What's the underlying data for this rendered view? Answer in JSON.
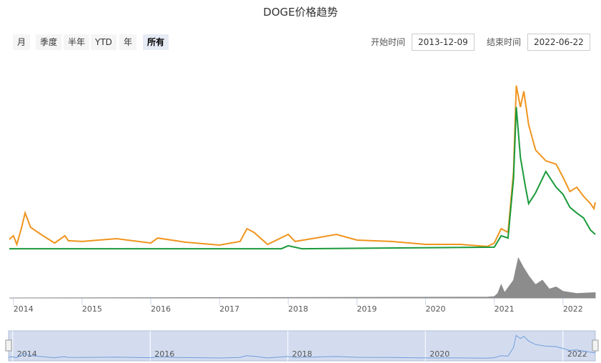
{
  "chart_data": {
    "type": "line",
    "title": "DOGE价格趋势",
    "range_buttons": [
      "月",
      "季度",
      "半年",
      "YTD",
      "年",
      "所有"
    ],
    "selected_button": 5,
    "start_label": "开始时间",
    "start_date": "2013-12-09",
    "end_label": "结束时间",
    "end_date": "2022-06-22",
    "xlim": [
      2013.94,
      2022.47
    ],
    "xticks": [
      2014,
      2015,
      2016,
      2017,
      2018,
      2019,
      2020,
      2021,
      2022
    ],
    "ylim": [
      0,
      0.8
    ],
    "y2lim": [
      0,
      1
    ],
    "navigator_xticks": [
      2014,
      2016,
      2018,
      2020,
      2022
    ],
    "series": [
      {
        "color": "#f0941e",
        "x": [
          2013.94,
          2014.0,
          2014.05,
          2014.12,
          2014.17,
          2014.25,
          2014.4,
          2014.6,
          2014.75,
          2014.8,
          2015.0,
          2015.5,
          2016.0,
          2016.1,
          2016.5,
          2017.0,
          2017.3,
          2017.4,
          2017.5,
          2017.7,
          2018.0,
          2018.1,
          2018.4,
          2018.7,
          2019.0,
          2019.5,
          2020.0,
          2020.5,
          2020.9,
          2021.0,
          2021.1,
          2021.2,
          2021.28,
          2021.32,
          2021.38,
          2021.43,
          2021.5,
          2021.6,
          2021.75,
          2021.9,
          2022.0,
          2022.1,
          2022.2,
          2022.3,
          2022.4,
          2022.45,
          2022.47
        ],
        "values": [
          0.047,
          0.063,
          0.025,
          0.1,
          0.163,
          0.1,
          0.069,
          0.031,
          0.063,
          0.041,
          0.038,
          0.05,
          0.031,
          0.053,
          0.035,
          0.022,
          0.038,
          0.094,
          0.078,
          0.025,
          0.069,
          0.038,
          0.053,
          0.069,
          0.044,
          0.038,
          0.025,
          0.025,
          0.016,
          0.031,
          0.094,
          0.078,
          0.345,
          0.722,
          0.628,
          0.697,
          0.55,
          0.44,
          0.392,
          0.377,
          0.32,
          0.257,
          0.276,
          0.236,
          0.204,
          0.182,
          0.21
        ]
      },
      {
        "color": "#1a9a3a",
        "x": [
          2013.94,
          2017.9,
          2018.0,
          2018.2,
          2021.0,
          2021.1,
          2021.2,
          2021.28,
          2021.32,
          2021.38,
          2021.45,
          2021.5,
          2021.6,
          2021.75,
          2021.9,
          2022.0,
          2022.1,
          2022.2,
          2022.3,
          2022.4,
          2022.47
        ],
        "values": [
          0.006,
          0.006,
          0.019,
          0.006,
          0.013,
          0.063,
          0.053,
          0.314,
          0.628,
          0.408,
          0.283,
          0.204,
          0.251,
          0.345,
          0.276,
          0.245,
          0.188,
          0.163,
          0.141,
          0.088,
          0.069
        ]
      },
      {
        "color": "#8c8c8c",
        "axis": "y2",
        "x": [
          2013.94,
          2020.9,
          2021.0,
          2021.05,
          2021.1,
          2021.15,
          2021.28,
          2021.35,
          2021.42,
          2021.5,
          2021.6,
          2021.7,
          2021.8,
          2021.9,
          2022.0,
          2022.2,
          2022.47
        ],
        "values": [
          0,
          0.02,
          0.03,
          0.1,
          0.3,
          0.12,
          0.4,
          0.9,
          0.7,
          0.5,
          0.3,
          0.4,
          0.2,
          0.25,
          0.15,
          0.1,
          0.12
        ]
      }
    ]
  }
}
